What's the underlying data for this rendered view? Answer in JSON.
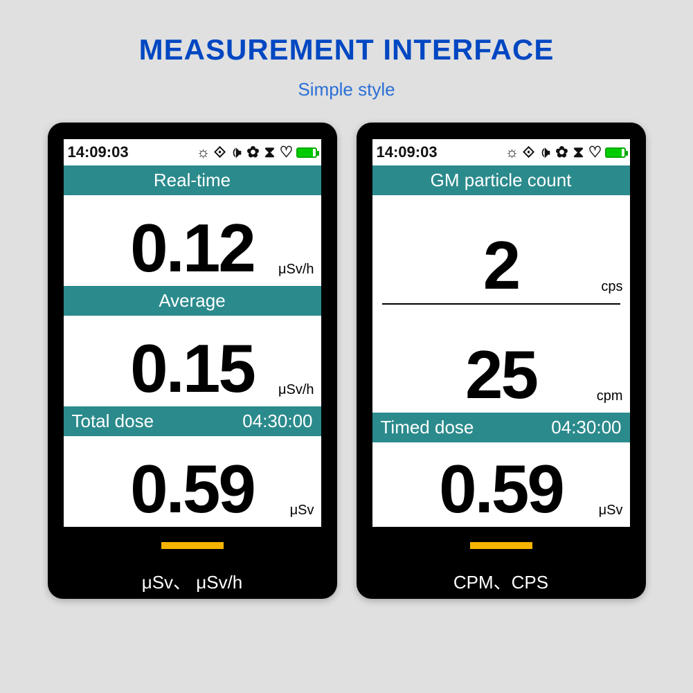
{
  "header": {
    "title": "MEASUREMENT INTERFACE",
    "subtitle": "Simple style",
    "title_color": "#0047c2",
    "subtitle_color": "#2a6fd6"
  },
  "theme": {
    "page_bg": "#e0e0e0",
    "device_bg": "#000000",
    "screen_bg": "#ffffff",
    "teal": "#2b8a8c",
    "indicator": "#f5b400",
    "battery_color": "#00cc00",
    "value_fontsize": 98,
    "header_fontsize": 26,
    "unit_fontsize": 20
  },
  "status": {
    "time": "14:09:03",
    "icons": [
      "brightness",
      "vibrate",
      "sound",
      "fan",
      "hourglass",
      "heart"
    ]
  },
  "screens": {
    "left": {
      "caption": "μSv、 μSv/h",
      "sections": [
        {
          "label": "Real-time",
          "value": "0.12",
          "unit": "μSv/h"
        },
        {
          "label": "Average",
          "value": "0.15",
          "unit": "μSv/h"
        },
        {
          "label": "Total dose",
          "time": "04:30:00",
          "value": "0.59",
          "unit": "μSv"
        }
      ]
    },
    "right": {
      "caption": "CPM、CPS",
      "header": "GM particle count",
      "rows": [
        {
          "value": "2",
          "unit": "cps"
        },
        {
          "value": "25",
          "unit": "cpm"
        }
      ],
      "bottom": {
        "label": "Timed dose",
        "time": "04:30:00",
        "value": "0.59",
        "unit": "μSv"
      }
    }
  }
}
